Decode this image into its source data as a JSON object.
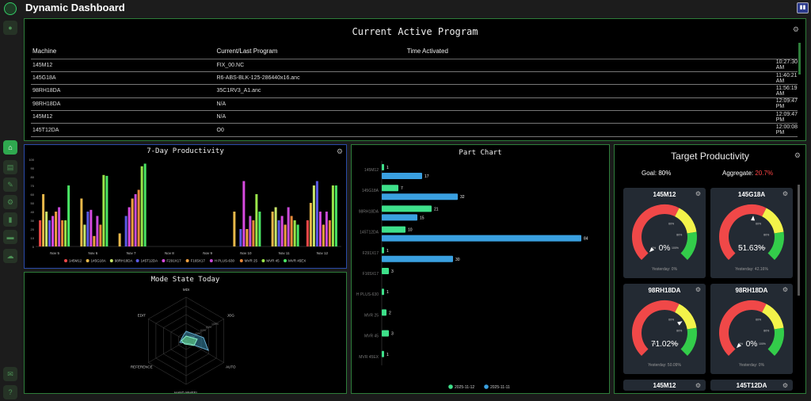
{
  "app": {
    "title": "Dynamic Dashboard",
    "top_button_icon": "pause-icon"
  },
  "colors": {
    "accent": "#2fa84f",
    "border": "#2e7d3a",
    "gauge_red": "#f04848",
    "gauge_yellow": "#f3f34a",
    "gauge_green": "#33cc4a"
  },
  "active_program": {
    "title": "Current Active Program",
    "columns": [
      "Machine",
      "Current/Last Program",
      "Time Activated"
    ],
    "rows": [
      [
        "145M12",
        "FIX_00.NC",
        "10:27:30 AM"
      ],
      [
        "145G18A",
        "R6-ABS-BLK-125-286440x16.anc",
        "11:40:21 AM"
      ],
      [
        "98RH18DA",
        "35C1RV3_A1.anc",
        "11:56:19 AM"
      ],
      [
        "98RH18DA",
        "N/A",
        "12:09:47 PM"
      ],
      [
        "145M12",
        "N/A",
        "12:09:47 PM"
      ],
      [
        "145T12DA",
        "O0",
        "12:00:08 PM"
      ]
    ]
  },
  "productivity": {
    "title": "7-Day Productivity",
    "chart_data": {
      "type": "bar",
      "categories": [
        "Nov 5",
        "Nov 6",
        "Nov 7",
        "Nov 8",
        "Nov 9",
        "Nov 10",
        "Nov 11",
        "Nov 12"
      ],
      "ylim": [
        0,
        100
      ],
      "yticks": [
        0,
        10,
        20,
        30,
        40,
        50,
        60,
        70,
        80,
        90,
        100
      ],
      "series": [
        {
          "name": "145M12",
          "color": "#f04848",
          "values": [
            30,
            0,
            0,
            0,
            0,
            0,
            0,
            30
          ]
        },
        {
          "name": "145G18A",
          "color": "#e8b84a",
          "values": [
            60,
            55,
            15,
            0,
            0,
            40,
            40,
            50
          ]
        },
        {
          "name": "98RH18DA",
          "color": "#c8e66a",
          "values": [
            40,
            25,
            0,
            0,
            0,
            0,
            45,
            70
          ]
        },
        {
          "name": "145T12DA",
          "color": "#5a5ae6",
          "values": [
            30,
            40,
            35,
            0,
            0,
            20,
            30,
            75
          ]
        },
        {
          "name": "F291X17",
          "color": "#d84ae0",
          "values": [
            35,
            42,
            45,
            0,
            0,
            75,
            35,
            40
          ]
        },
        {
          "name": "F165X17",
          "color": "#f0a040",
          "values": [
            40,
            12,
            55,
            0,
            0,
            20,
            25,
            25
          ]
        },
        {
          "name": "H PLUS-630",
          "color": "#c84ad8",
          "values": [
            45,
            35,
            60,
            0,
            0,
            35,
            45,
            40
          ]
        },
        {
          "name": "MVR 25",
          "color": "#e8883a",
          "values": [
            30,
            25,
            65,
            0,
            0,
            30,
            35,
            30
          ]
        },
        {
          "name": "MVR 45",
          "color": "#9ae64a",
          "values": [
            30,
            82,
            92,
            0,
            0,
            60,
            30,
            70
          ]
        },
        {
          "name": "MVR 45EX",
          "color": "#4ae664",
          "values": [
            70,
            81,
            95,
            0,
            0,
            40,
            25,
            70
          ]
        }
      ]
    }
  },
  "part_chart": {
    "title": "Part Chart",
    "chart_data": {
      "type": "bar",
      "categories": [
        "145M12",
        "145G18A",
        "98RH18DA",
        "145T12DA",
        "F291X17",
        "F165X17",
        "H PLUS-630",
        "MVR 25",
        "MVR 45",
        "MVR 45EX"
      ],
      "xlim": [
        0,
        84
      ],
      "series": [
        {
          "name": "2025-11-12",
          "color": "#3ee08a",
          "values": [
            1,
            7,
            21,
            10,
            1,
            3,
            1,
            2,
            3,
            1
          ]
        },
        {
          "name": "2025-11-11",
          "color": "#3aa0e0",
          "values": [
            17,
            32,
            15,
            84,
            30,
            null,
            null,
            null,
            null,
            null
          ]
        }
      ]
    }
  },
  "mode_state": {
    "title": "Mode State Today",
    "chart_data": {
      "type": "radar",
      "axes": [
        "MDI",
        "JOG",
        "AUTO",
        "HAND WHEEL",
        "REFERENCE",
        "EDIT"
      ],
      "ticks": [
        "20%",
        "40%",
        "60%",
        "80%",
        "100%"
      ]
    }
  },
  "target": {
    "title": "Target Productivity",
    "goal_label": "Goal:",
    "goal_value": "80%",
    "aggregate_label": "Aggregate:",
    "aggregate_value": "20.7%",
    "scale_labels": [
      "0%",
      "60%",
      "80%",
      "100%"
    ],
    "gauges": [
      {
        "name": "145M12",
        "value": "0%",
        "pct": 0,
        "yesterday": "Yesterday: 0%"
      },
      {
        "name": "145G18A",
        "value": "51.63%",
        "pct": 51.63,
        "yesterday": "Yesterday: 42.16%"
      },
      {
        "name": "98RH18DA",
        "value": "71.02%",
        "pct": 71.02,
        "yesterday": "Yesterday: 50.09%"
      },
      {
        "name": "98RH18DA",
        "value": "0%",
        "pct": 0,
        "yesterday": "Yesterday: 0%"
      }
    ],
    "more_cards": [
      "145M12",
      "145T12DA"
    ]
  },
  "sidebar": {
    "icons": [
      "user-icon",
      "home-icon",
      "dashboard-icon",
      "wrench-icon",
      "gear-icon",
      "chart-icon",
      "folder-icon",
      "cloud-icon",
      "chat-icon",
      "help-icon"
    ]
  }
}
